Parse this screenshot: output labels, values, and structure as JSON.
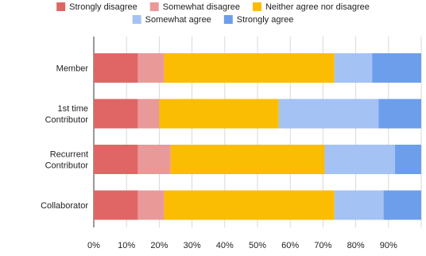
{
  "chart_data": {
    "type": "bar",
    "orientation": "horizontal",
    "stacked": true,
    "categories": [
      "Member",
      "1st time Contributor",
      "Recurrent Contributor",
      "Collaborator"
    ],
    "series": [
      {
        "name": "Strongly disagree",
        "color": "#e06666",
        "values": [
          13.5,
          13.5,
          13.5,
          13.5
        ]
      },
      {
        "name": "Somewhat disagree",
        "color": "#ea9999",
        "values": [
          8.0,
          6.5,
          10.0,
          8.0
        ]
      },
      {
        "name": "Neither agree nor disagree",
        "color": "#fbbc04",
        "values": [
          52.0,
          36.5,
          47.0,
          52.0
        ]
      },
      {
        "name": "Somewhat agree",
        "color": "#a4c2f4",
        "values": [
          11.5,
          30.5,
          21.5,
          15.0
        ]
      },
      {
        "name": "Strongly agree",
        "color": "#6d9eeb",
        "values": [
          15.0,
          13.0,
          8.0,
          11.5
        ]
      }
    ],
    "x_ticks": [
      "0%",
      "10%",
      "20%",
      "30%",
      "40%",
      "50%",
      "60%",
      "70%",
      "80%",
      "90%"
    ],
    "xlim": [
      0,
      100
    ],
    "grid": true,
    "legend_position": "top",
    "title": "",
    "xlabel": "",
    "ylabel": ""
  }
}
